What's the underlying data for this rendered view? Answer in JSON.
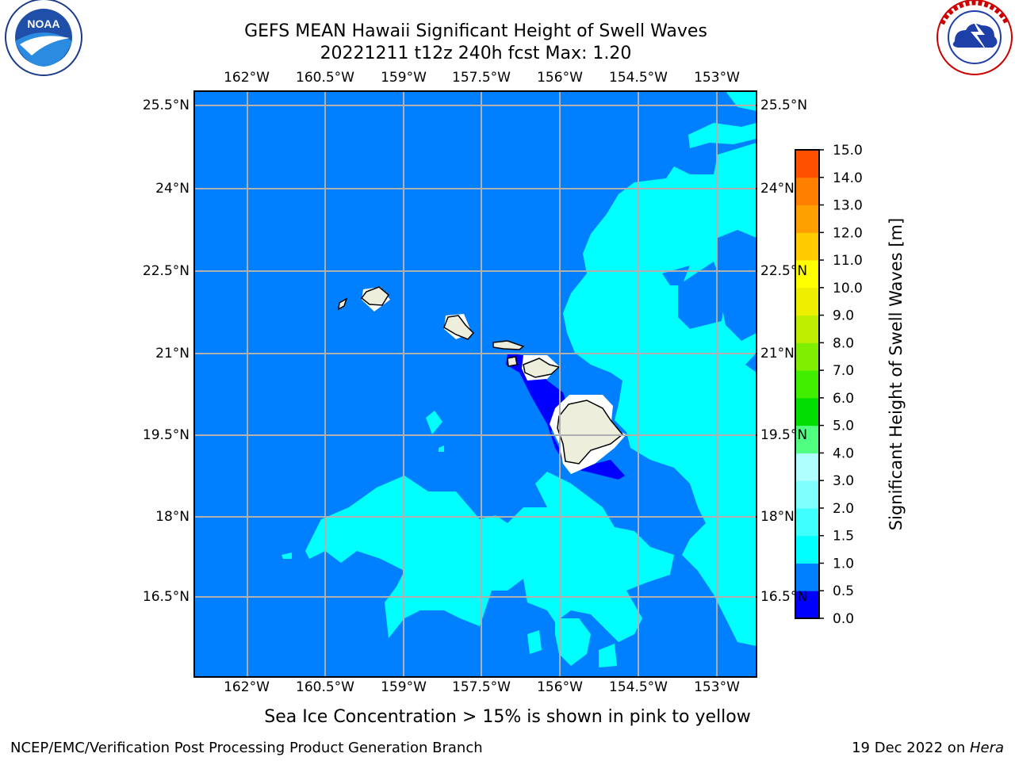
{
  "header": {
    "title_line1": "GEFS MEAN Hawaii Significant Height of Swell Waves",
    "title_line2": "20221211 t12z 240h fcst   Max: 1.20"
  },
  "logos": {
    "left": {
      "name": "noaa-logo",
      "text": "NOAA",
      "ring_text": "NATIONAL OCEANIC AND ATMOSPHERIC ADMINISTRATION · U.S. DEPARTMENT OF COMMERCE"
    },
    "right": {
      "name": "nws-logo",
      "ring_text": "NATIONAL WEATHER SERVICE"
    }
  },
  "map": {
    "lon_labels": [
      "162°W",
      "160.5°W",
      "159°W",
      "157.5°W",
      "156°W",
      "154.5°W",
      "153°W"
    ],
    "lat_labels": [
      "25.5°N",
      "24°N",
      "22.5°N",
      "21°N",
      "19.5°N",
      "18°N",
      "16.5°N"
    ],
    "colors": {
      "deep_blue": "#0000ff",
      "ocean_blue": "#0080ff",
      "cyan": "#00ffff",
      "land": "#eeeedd",
      "grid": "#b0b0b0"
    }
  },
  "colorbar": {
    "label": "Significant Height of Swell Waves [m]",
    "ticks": [
      "0.0",
      "0.5",
      "1.0",
      "1.5",
      "2.0",
      "3.0",
      "4.0",
      "5.0",
      "6.0",
      "7.0",
      "8.0",
      "9.0",
      "10.0",
      "11.0",
      "12.0",
      "13.0",
      "14.0",
      "15.0"
    ],
    "colors": [
      "#0000ff",
      "#0080ff",
      "#00ffff",
      "#40ffff",
      "#80ffff",
      "#b0ffff",
      "#50ff80",
      "#00dd00",
      "#40ee00",
      "#80ee00",
      "#c0ee00",
      "#eeee00",
      "#ffff00",
      "#ffcc00",
      "#ffa000",
      "#ff8000",
      "#ff5000",
      "#ff2000",
      "#ff0000"
    ]
  },
  "footer": {
    "note": "Sea Ice Concentration > 15% is shown in pink to yellow",
    "left": "NCEP/EMC/Verification Post Processing Product Generation Branch",
    "right_prefix": "19 Dec 2022 on ",
    "right_host": "Hera"
  }
}
